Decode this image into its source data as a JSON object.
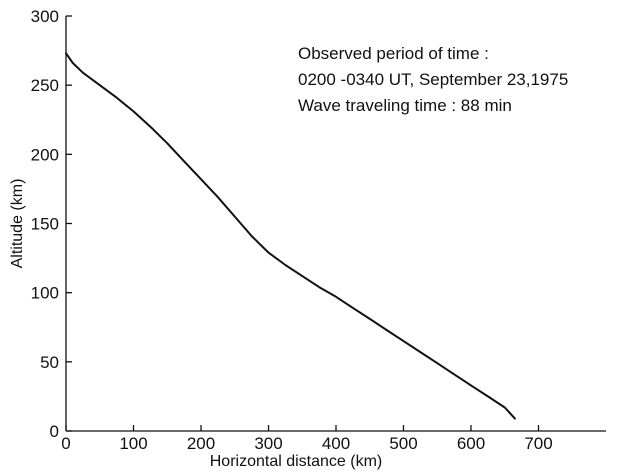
{
  "chart_data": {
    "type": "line",
    "title": "",
    "xlabel": "Horizontal distance (km)",
    "ylabel": "Altitude (km)",
    "xlim": [
      0,
      800
    ],
    "ylim": [
      0,
      300
    ],
    "x_ticks": [
      0,
      100,
      200,
      300,
      400,
      500,
      600,
      700
    ],
    "y_ticks": [
      0,
      50,
      100,
      150,
      200,
      250,
      300
    ],
    "grid": false,
    "annotations": [
      "Observed period of time :",
      "0200 -0340 UT, September 23,1975",
      "Wave traveling time : 88 min"
    ],
    "series": [
      {
        "x": [
          0,
          10,
          25,
          50,
          75,
          100,
          125,
          150,
          175,
          200,
          225,
          250,
          275,
          300,
          325,
          350,
          375,
          400,
          425,
          450,
          475,
          500,
          525,
          550,
          575,
          600,
          625,
          650,
          665
        ],
        "y": [
          273,
          266,
          259,
          250,
          241,
          231,
          220,
          208,
          195,
          182,
          169,
          155,
          141,
          129,
          120,
          112,
          104,
          97,
          89,
          81,
          73,
          65,
          57,
          49,
          41,
          33,
          25,
          17,
          9
        ]
      }
    ]
  }
}
